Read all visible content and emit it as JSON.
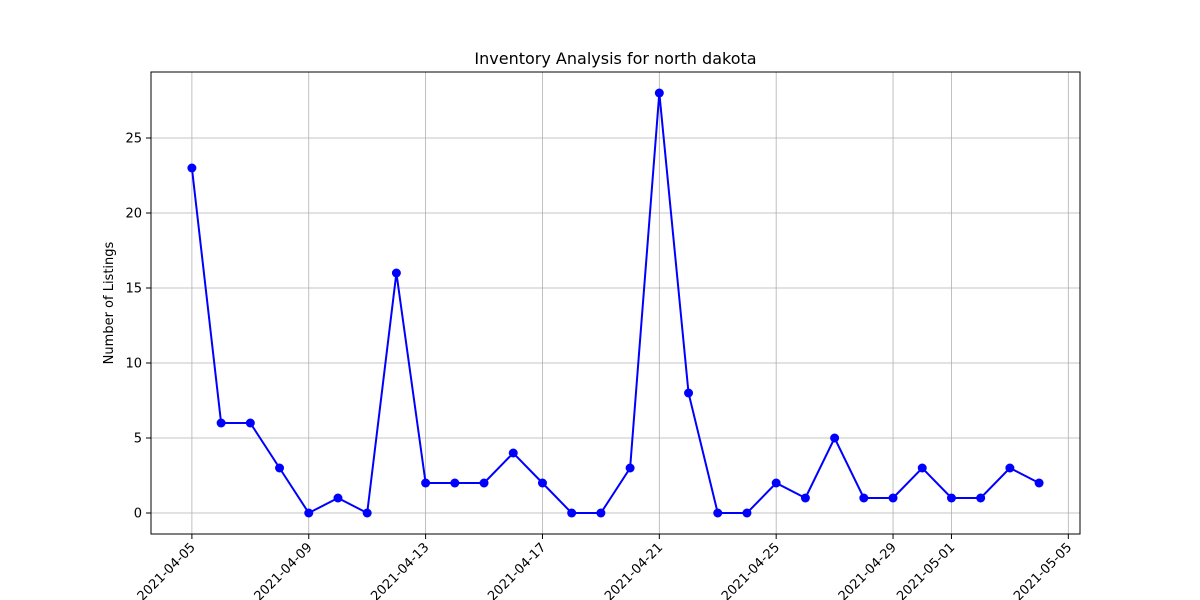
{
  "chart_data": {
    "type": "line",
    "title": "Inventory Analysis for north dakota",
    "xlabel": "",
    "ylabel": "Number of Listings",
    "x": [
      "2021-04-05",
      "2021-04-06",
      "2021-04-07",
      "2021-04-08",
      "2021-04-09",
      "2021-04-10",
      "2021-04-11",
      "2021-04-12",
      "2021-04-13",
      "2021-04-14",
      "2021-04-15",
      "2021-04-16",
      "2021-04-17",
      "2021-04-18",
      "2021-04-19",
      "2021-04-20",
      "2021-04-21",
      "2021-04-22",
      "2021-04-23",
      "2021-04-24",
      "2021-04-25",
      "2021-04-26",
      "2021-04-27",
      "2021-04-28",
      "2021-04-29",
      "2021-04-30",
      "2021-05-01",
      "2021-05-02",
      "2021-05-03",
      "2021-05-04"
    ],
    "values": [
      23,
      6,
      6,
      3,
      0,
      1,
      0,
      16,
      2,
      2,
      2,
      4,
      2,
      0,
      0,
      3,
      28,
      8,
      0,
      0,
      2,
      1,
      5,
      1,
      1,
      3,
      1,
      1,
      3,
      2
    ],
    "xticks": [
      "2021-04-05",
      "2021-04-09",
      "2021-04-13",
      "2021-04-17",
      "2021-04-21",
      "2021-04-25",
      "2021-04-29",
      "2021-05-01",
      "2021-05-05"
    ],
    "yticks": [
      0,
      5,
      10,
      15,
      20,
      25
    ],
    "xlim": [
      "2021-04-03.6",
      "2021-05-05.4"
    ],
    "ylim": [
      -1.4,
      29.4
    ],
    "grid": true,
    "line_color": "#0000ff",
    "marker": "circle",
    "marker_color": "#0000ff"
  }
}
